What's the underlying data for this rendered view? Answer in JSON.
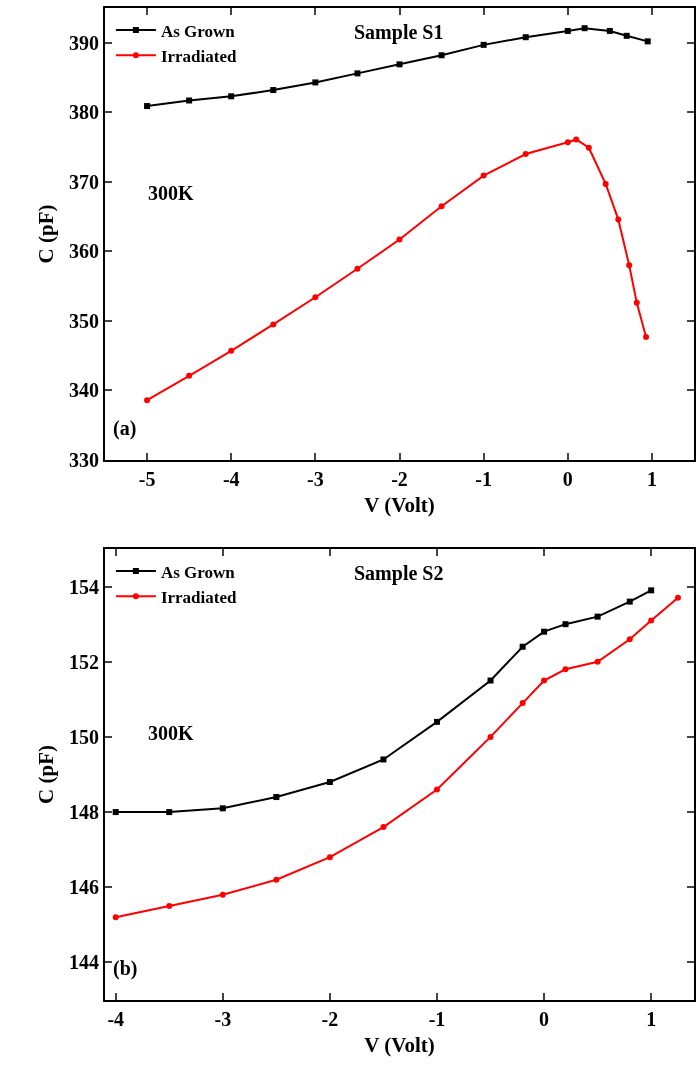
{
  "chart_data": [
    {
      "type": "line",
      "xlabel": "V (Volt)",
      "ylabel": "C (pF)",
      "annotations": [
        "Sample S1",
        "300K",
        "(a)"
      ],
      "xlim": [
        -5.5,
        1.5
      ],
      "xticks": [
        -5,
        -4,
        -3,
        -2,
        -1,
        0,
        1
      ],
      "ylim": [
        330,
        395
      ],
      "yticks": [
        330,
        340,
        350,
        360,
        370,
        380,
        390
      ],
      "grid": false,
      "legend": "top left",
      "line_style": "solid",
      "series": [
        {
          "name": "As Grown",
          "color": "#000000",
          "marker": "square",
          "x": [
            -5,
            -4.5,
            -4,
            -3.5,
            -3,
            -2.5,
            -2,
            -1.5,
            -1,
            -0.5,
            0,
            0.2,
            0.5,
            0.7,
            0.95
          ],
          "values": [
            380.9,
            381.7,
            382.3,
            383.2,
            384.3,
            385.6,
            386.9,
            388.2,
            389.7,
            390.8,
            391.7,
            392.1,
            391.7,
            391,
            390.2
          ]
        },
        {
          "name": "Irradiated",
          "color": "#ff0000",
          "marker": "circle",
          "x": [
            -5,
            -4.5,
            -4,
            -3.5,
            -3,
            -2.5,
            -2,
            -1.5,
            -1,
            -0.5,
            0,
            0.1,
            0.25,
            0.45,
            0.6,
            0.73,
            0.82,
            0.93
          ],
          "values": [
            338.6,
            342.1,
            345.7,
            349.5,
            353.4,
            357.5,
            361.7,
            366.5,
            370.9,
            374,
            375.7,
            376.1,
            374.9,
            369.7,
            364.6,
            358,
            352.6,
            347.7
          ]
        }
      ]
    },
    {
      "type": "line",
      "xlabel": "V (Volt)",
      "ylabel": "C (pF)",
      "annotations": [
        "Sample S2",
        "300K",
        "(b)"
      ],
      "xlim": [
        -4.1,
        1.4
      ],
      "xticks": [
        -4,
        -3,
        -2,
        -1,
        0,
        1
      ],
      "ylim": [
        143,
        155
      ],
      "yticks": [
        144,
        146,
        148,
        150,
        152,
        154
      ],
      "grid": false,
      "legend": "top left",
      "line_style": "solid",
      "series": [
        {
          "name": "As Grown",
          "color": "#000000",
          "marker": "square",
          "x": [
            -4,
            -3.5,
            -3,
            -2.5,
            -2,
            -1.5,
            -1,
            -0.5,
            -0.2,
            0,
            0.2,
            0.5,
            0.8,
            1
          ],
          "values": [
            148,
            148,
            148.1,
            148.4,
            148.8,
            149.4,
            150.4,
            151.5,
            152.4,
            152.8,
            153,
            153.2,
            153.6,
            153.9
          ]
        },
        {
          "name": "Irradiated",
          "color": "#ff0000",
          "marker": "circle",
          "x": [
            -4,
            -3.5,
            -3,
            -2.5,
            -2,
            -1.5,
            -1,
            -0.5,
            -0.2,
            0,
            0.2,
            0.5,
            0.8,
            1,
            1.25
          ],
          "values": [
            145.2,
            145.5,
            145.8,
            146.2,
            146.8,
            147.6,
            148.6,
            150,
            150.9,
            151.5,
            151.8,
            152,
            152.6,
            153.1,
            153.7
          ]
        }
      ]
    }
  ]
}
